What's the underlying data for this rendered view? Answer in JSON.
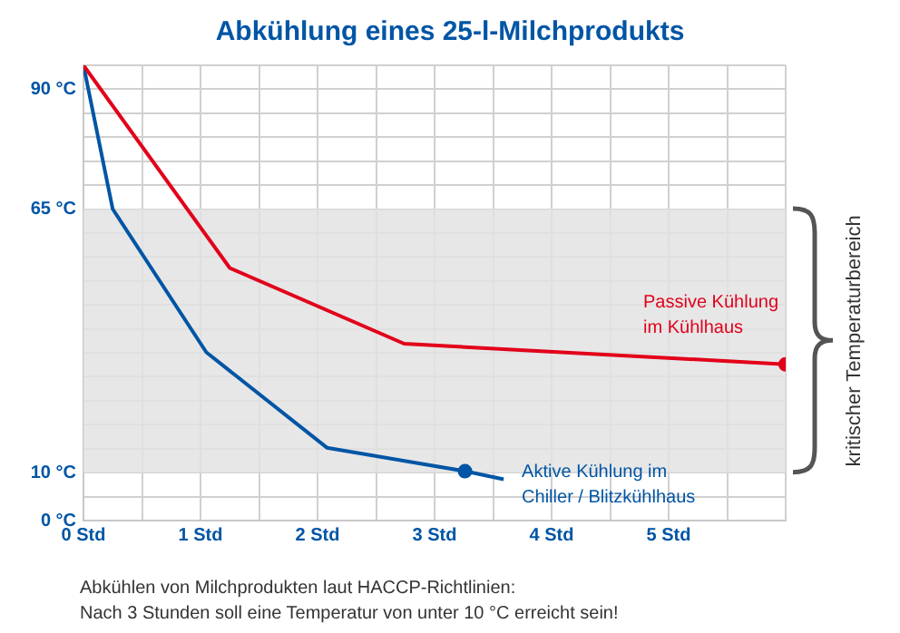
{
  "chart_data": {
    "type": "line",
    "title": "Abkühlung eines 25-l-Milchprodukts",
    "series": [
      {
        "name": "Passive Kühlung im Kühlhaus",
        "color": "#e2001a",
        "x": [
          0,
          1.25,
          2.74,
          6
        ],
        "values": [
          95,
          52.7,
          36.9,
          32.6
        ]
      },
      {
        "name": "Aktive Kühlung im Chiller / Blitzkühlhaus",
        "color": "#0055a5",
        "x": [
          0,
          0.25,
          1.05,
          2.08,
          3.26,
          3.59
        ],
        "values": [
          95,
          65,
          35.1,
          15.2,
          10.3,
          8.6
        ]
      },
      {
        "type": "scatter",
        "marker": "circle",
        "color": "#e2001a",
        "x": [
          6
        ],
        "values": [
          32.6
        ]
      },
      {
        "type": "scatter",
        "marker": "circle",
        "color": "#0055a5",
        "x": [
          3.26
        ],
        "values": [
          10.3
        ]
      }
    ],
    "xlim": [
      0,
      6
    ],
    "xticks": [
      {
        "value": 0,
        "label": "0 Std"
      },
      {
        "value": 0.5,
        "label": null
      },
      {
        "value": 1,
        "label": "1 Std"
      },
      {
        "value": 1.5,
        "label": null
      },
      {
        "value": 2,
        "label": "2 Std"
      },
      {
        "value": 2.5,
        "label": null
      },
      {
        "value": 3,
        "label": "3 Std"
      },
      {
        "value": 3.5,
        "label": null
      },
      {
        "value": 4,
        "label": "4 Std"
      },
      {
        "value": 4.5,
        "label": null
      },
      {
        "value": 5,
        "label": "5 Std"
      },
      {
        "value": 5.5,
        "label": null
      },
      {
        "value": 6,
        "label": null
      }
    ],
    "ylim": [
      0,
      95
    ],
    "yticks": [
      {
        "value": 0,
        "label": "0 °C"
      },
      {
        "value": 5,
        "label": null
      },
      {
        "value": 10,
        "label": "10 °C"
      },
      {
        "value": 15,
        "label": null
      },
      {
        "value": 20,
        "label": null
      },
      {
        "value": 25,
        "label": null
      },
      {
        "value": 30,
        "label": null
      },
      {
        "value": 35,
        "label": null
      },
      {
        "value": 40,
        "label": null
      },
      {
        "value": 45,
        "label": null
      },
      {
        "value": 50,
        "label": null
      },
      {
        "value": 55,
        "label": null
      },
      {
        "value": 60,
        "label": null
      },
      {
        "value": 65,
        "label": "65 °C"
      },
      {
        "value": 70,
        "label": null
      },
      {
        "value": 75,
        "label": null
      },
      {
        "value": 80,
        "label": null
      },
      {
        "value": 85,
        "label": null
      },
      {
        "value": 90,
        "label": "90 °C"
      },
      {
        "value": 95,
        "label": null
      }
    ],
    "grid": true,
    "legend": false,
    "line_style": "solid",
    "bands": [
      {
        "axis": "y",
        "from": 10,
        "to": 65,
        "label": "kritischer Temperaturbereich",
        "color": "#e3e3e3"
      }
    ],
    "annotations": [
      "Abkühlen von Milchprodukten laut HACCP-Richtlinien:",
      "Nach 3 Stunden soll eine Temperatur von unter 10 °C erreicht sein!"
    ]
  }
}
